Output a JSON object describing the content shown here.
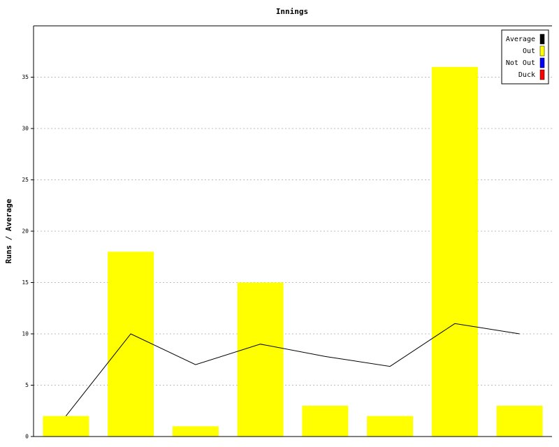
{
  "chart_data": {
    "type": "bar",
    "title": "Innings",
    "y_label": "Runs / Average",
    "categories": [
      null,
      null,
      null,
      null,
      null,
      null,
      null,
      null
    ],
    "series": [
      {
        "name": "Average",
        "type": "line",
        "color": "#000000",
        "values": [
          2,
          10,
          7,
          9,
          7.8,
          6.83,
          11,
          10
        ]
      },
      {
        "name": "Out",
        "type": "bar",
        "color": "#ffff00",
        "values": [
          2,
          18,
          1,
          15,
          3,
          2,
          36,
          3
        ]
      },
      {
        "name": "Not Out",
        "type": "bar",
        "color": "#0000ff",
        "values": [
          null,
          null,
          null,
          null,
          null,
          null,
          null,
          null
        ]
      },
      {
        "name": "Duck",
        "type": "bar",
        "color": "#ff0000",
        "values": [
          null,
          null,
          null,
          null,
          null,
          null,
          null,
          null
        ]
      }
    ],
    "ylim": [
      0,
      40
    ],
    "yticks": [
      0,
      5,
      10,
      15,
      20,
      25,
      30,
      35
    ],
    "grid": true,
    "legend": "top-right"
  }
}
